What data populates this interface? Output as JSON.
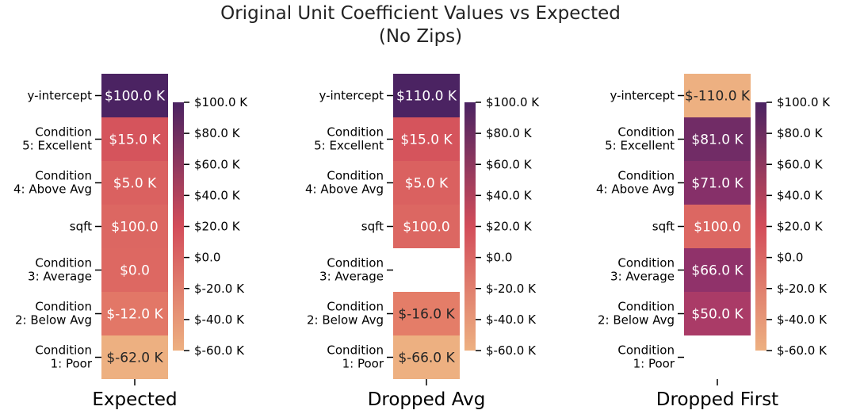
{
  "chart_data": {
    "type": "heatmap",
    "title": "Original Unit Coefficient Values vs Expected",
    "subtitle": "(No Zips)",
    "colormap": "flare",
    "colors": {
      "low": "#edb081",
      "mid": "#d34d5a",
      "high": "#4b2362"
    },
    "row_labels": [
      [
        "y-intercept"
      ],
      [
        "Condition",
        "5: Excellent"
      ],
      [
        "Condition",
        "4: Above Avg"
      ],
      [
        "sqft"
      ],
      [
        "Condition",
        "3: Average"
      ],
      [
        "Condition",
        "2: Below Avg"
      ],
      [
        "Condition",
        "1: Poor"
      ]
    ],
    "colorbar": {
      "vmin": -60000,
      "vmax": 100000,
      "ticks": [
        100000,
        80000,
        60000,
        40000,
        20000,
        0,
        -20000,
        -40000,
        -60000
      ],
      "tick_labels": [
        "$100.0 K",
        "$80.0 K",
        "$60.0 K",
        "$40.0 K",
        "$20.0 K",
        "$0.0",
        "$-20.0 K",
        "$-40.0 K",
        "$-60.0 K"
      ]
    },
    "panels": [
      {
        "xlabel": "Expected",
        "values": [
          100000,
          15000,
          5000,
          100,
          0,
          -12000,
          -62000
        ],
        "cell_labels": [
          "$100.0 K",
          "$15.0 K",
          "$5.0 K",
          "$100.0",
          "$0.0",
          "$-12.0 K",
          "$-62.0 K"
        ]
      },
      {
        "xlabel": "Dropped Avg",
        "values": [
          110000,
          15000,
          5000,
          100,
          null,
          -16000,
          -66000
        ],
        "cell_labels": [
          "$110.0 K",
          "$15.0 K",
          "$5.0 K",
          "$100.0",
          "",
          "$-16.0 K",
          "$-66.0 K"
        ]
      },
      {
        "xlabel": "Dropped First",
        "values": [
          -110000,
          81000,
          71000,
          100,
          66000,
          50000,
          null
        ],
        "cell_labels": [
          "$-110.0 K",
          "$81.0 K",
          "$71.0 K",
          "$100.0",
          "$66.0 K",
          "$50.0 K",
          ""
        ]
      }
    ]
  }
}
